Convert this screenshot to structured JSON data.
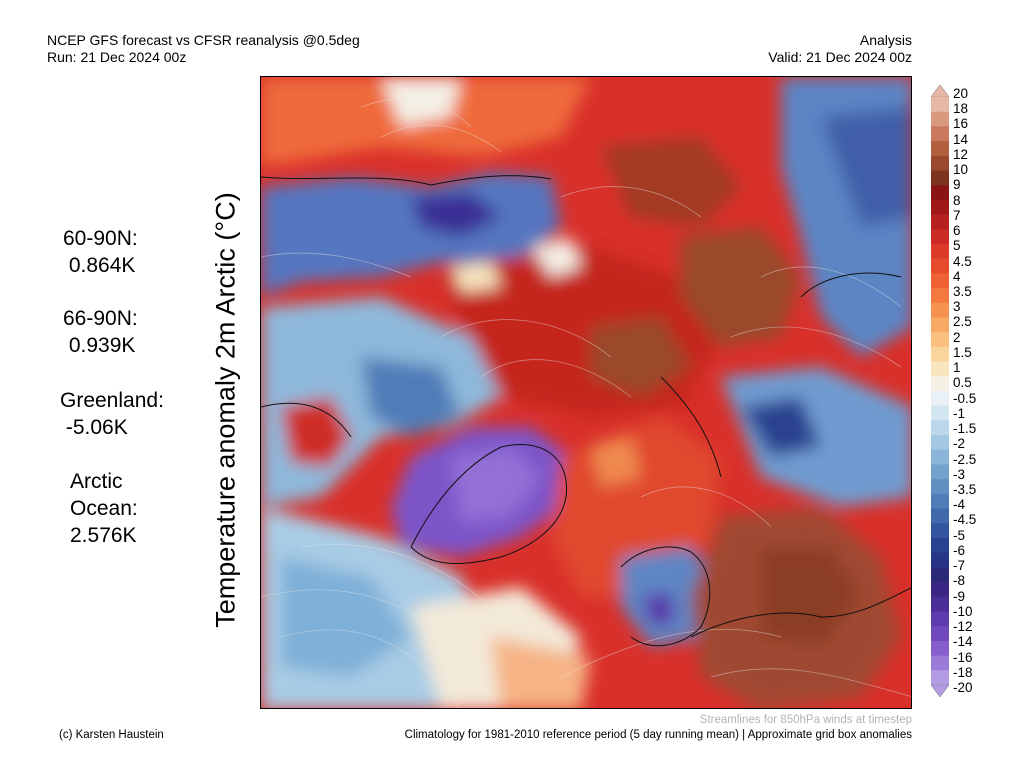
{
  "header": {
    "title_left": "NCEP GFS forecast vs CFSR reanalysis @0.5deg",
    "run": "Run: 21 Dec 2024 00z",
    "title_right": "Analysis",
    "valid": "Valid: 21 Dec 2024 00z"
  },
  "y_label": "Temperature anomaly 2m Arctic (°C)",
  "stats": {
    "lat_60_90": "60-90N:\n 0.864K",
    "lat_66_90": "66-90N:\n 0.939K",
    "greenland": "Greenland:\n -5.06K",
    "arctic_ocean": "Arctic\nOcean:\n2.576K"
  },
  "colorbar": {
    "labels": [
      "20",
      "18",
      "16",
      "14",
      "12",
      "10",
      "9",
      "8",
      "7",
      "6",
      "5",
      "4.5",
      "4",
      "3.5",
      "3",
      "2.5",
      "2",
      "1.5",
      "1",
      "0.5",
      "-0.5",
      "-1",
      "-1.5",
      "-2",
      "-2.5",
      "-3",
      "-3.5",
      "-4",
      "-4.5",
      "-5",
      "-6",
      "-7",
      "-8",
      "-9",
      "-10",
      "-12",
      "-14",
      "-16",
      "-18",
      "-20"
    ],
    "colors": [
      "#e8b8a6",
      "#d9997f",
      "#c97a5e",
      "#b3603f",
      "#9a4a2c",
      "#7d3520",
      "#8a1414",
      "#a01818",
      "#b81f1f",
      "#cc2a24",
      "#dc3a26",
      "#e64c2c",
      "#ee6234",
      "#f3793f",
      "#f6924f",
      "#f8aa66",
      "#f9c07f",
      "#f9d49c",
      "#f8e6bf",
      "#f4f0e4",
      "#e9f0f6",
      "#d4e5f2",
      "#bcd6ea",
      "#a3c6e2",
      "#8bb5d8",
      "#74a3cd",
      "#6090c2",
      "#4f7db8",
      "#4069ac",
      "#33559e",
      "#2a4390",
      "#263585",
      "#2c2878",
      "#3a2785",
      "#4a2e98",
      "#5d3aad",
      "#7048be",
      "#8560cc",
      "#9b7ad8",
      "#b39be4"
    ]
  },
  "footer": {
    "credit": "(c) Karsten Haustein",
    "streamlines_note": "Streamlines for 850hPa winds at timestep",
    "climatology_note": "Climatology for 1981-2010 reference period (5 day running mean) | Approximate grid box anomalies"
  }
}
